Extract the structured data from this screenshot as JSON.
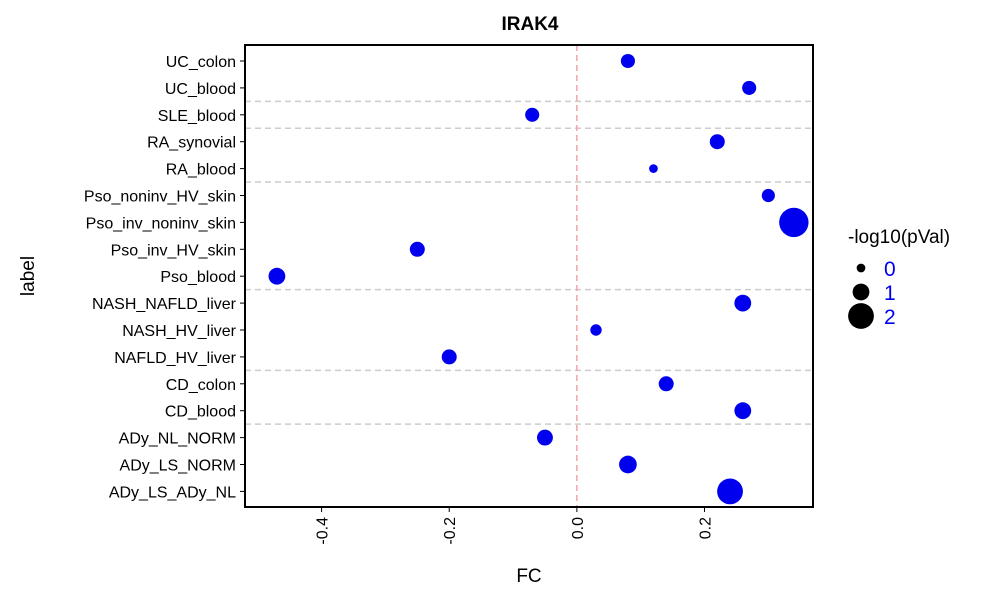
{
  "chart_data": {
    "type": "scatter",
    "title": "IRAK4",
    "xlabel": "FC",
    "ylabel": "label",
    "xlim": [
      -0.52,
      0.37
    ],
    "x_ticks": [
      -0.4,
      -0.2,
      0.0,
      0.2
    ],
    "x_tick_labels": [
      "-0.4",
      "-0.2",
      "0.0",
      "0.2"
    ],
    "vline_x": 0,
    "vline_color": "#f4a3a8",
    "point_color": "#0000ee",
    "grid": false,
    "categories": [
      "UC_colon",
      "UC_blood",
      "SLE_blood",
      "RA_synovial",
      "RA_blood",
      "Pso_noninv_HV_skin",
      "Pso_inv_noninv_skin",
      "Pso_inv_HV_skin",
      "Pso_blood",
      "NASH_NAFLD_liver",
      "NASH_HV_liver",
      "NAFLD_HV_liver",
      "CD_colon",
      "CD_blood",
      "ADy_NL_NORM",
      "ADy_LS_NORM",
      "ADy_LS_ADy_NL"
    ],
    "group_separators_after": [
      "UC_blood",
      "SLE_blood",
      "RA_blood",
      "Pso_blood",
      "NAFLD_HV_liver",
      "CD_blood"
    ],
    "points": [
      {
        "label": "UC_colon",
        "x": 0.08,
        "size": 0.9
      },
      {
        "label": "UC_blood",
        "x": 0.27,
        "size": 0.9
      },
      {
        "label": "SLE_blood",
        "x": -0.07,
        "size": 0.9
      },
      {
        "label": "RA_synovial",
        "x": 0.22,
        "size": 1.0
      },
      {
        "label": "RA_blood",
        "x": 0.12,
        "size": 0.3
      },
      {
        "label": "Pso_noninv_HV_skin",
        "x": 0.3,
        "size": 0.8
      },
      {
        "label": "Pso_inv_noninv_skin",
        "x": 0.34,
        "size": 2.6
      },
      {
        "label": "Pso_inv_HV_skin",
        "x": -0.25,
        "size": 1.0
      },
      {
        "label": "Pso_blood",
        "x": -0.47,
        "size": 1.2
      },
      {
        "label": "NASH_NAFLD_liver",
        "x": 0.26,
        "size": 1.2
      },
      {
        "label": "NASH_HV_liver",
        "x": 0.03,
        "size": 0.6
      },
      {
        "label": "NAFLD_HV_liver",
        "x": -0.2,
        "size": 1.0
      },
      {
        "label": "CD_colon",
        "x": 0.14,
        "size": 1.0
      },
      {
        "label": "CD_blood",
        "x": 0.26,
        "size": 1.2
      },
      {
        "label": "ADy_NL_NORM",
        "x": -0.05,
        "size": 1.1
      },
      {
        "label": "ADy_LS_NORM",
        "x": 0.08,
        "size": 1.3
      },
      {
        "label": "ADy_LS_ADy_NL",
        "x": 0.24,
        "size": 2.2
      }
    ],
    "legend": {
      "title": "-log10(pVal)",
      "placement": "right",
      "entries": [
        {
          "label": "0",
          "size": 0.3
        },
        {
          "label": "1",
          "size": 1.2
        },
        {
          "label": "2",
          "size": 2.2
        }
      ],
      "label_color": "#0000ee"
    }
  }
}
